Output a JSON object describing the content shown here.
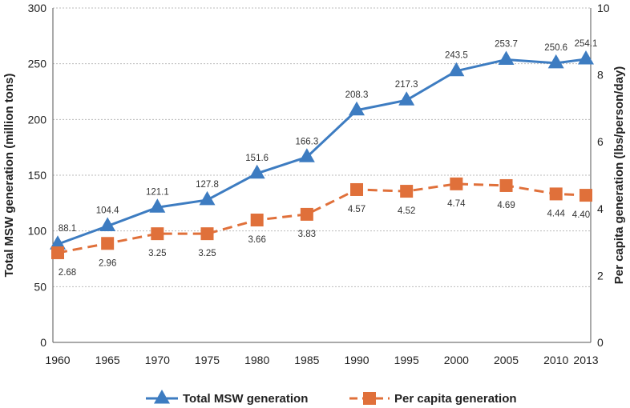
{
  "chart_data": {
    "type": "line",
    "x": [
      "1960",
      "1965",
      "1970",
      "1975",
      "1980",
      "1985",
      "1990",
      "1995",
      "2000",
      "2005",
      "2010",
      "2013"
    ],
    "x_numeric": [
      1960,
      1965,
      1970,
      1975,
      1980,
      1985,
      1990,
      1995,
      2000,
      2005,
      2010,
      2013
    ],
    "ylabel": "Total MSW generation (million tons)",
    "y2label": "Per capita generation (lbs/person/day)",
    "ylim": [
      0,
      300
    ],
    "y2lim": [
      0,
      10
    ],
    "y_ticks": [
      "0",
      "50",
      "100",
      "150",
      "200",
      "250",
      "300"
    ],
    "y2_ticks": [
      "0",
      "2",
      "4",
      "6",
      "8",
      "10"
    ],
    "grid": "horizontal dotted",
    "legend_position": "bottom",
    "series": [
      {
        "name": "Total MSW generation",
        "axis": "left",
        "color": "#3d7cc1",
        "marker": "triangle",
        "line_style": "solid",
        "values": [
          88.1,
          104.4,
          121.1,
          127.8,
          151.6,
          166.3,
          208.3,
          217.3,
          243.5,
          253.7,
          250.6,
          254.1
        ],
        "labels": [
          "88.1",
          "104.4",
          "121.1",
          "127.8",
          "151.6",
          "166.3",
          "208.3",
          "217.3",
          "243.5",
          "253.7",
          "250.6",
          "254.1"
        ]
      },
      {
        "name": "Per capita generation",
        "axis": "right",
        "color": "#e0703a",
        "marker": "square",
        "line_style": "dashed",
        "values": [
          2.68,
          2.96,
          3.25,
          3.25,
          3.66,
          3.83,
          4.57,
          4.52,
          4.74,
          4.69,
          4.44,
          4.4
        ],
        "labels": [
          "2.68",
          "2.96",
          "3.25",
          "3.25",
          "3.66",
          "3.83",
          "4.57",
          "4.52",
          "4.74",
          "4.69",
          "4.44",
          "4.40"
        ]
      }
    ]
  }
}
